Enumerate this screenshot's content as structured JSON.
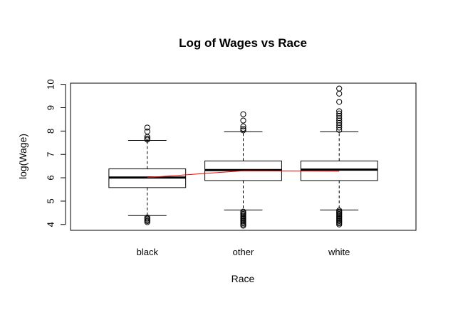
{
  "chart_data": {
    "type": "boxplot",
    "title": "Log of Wages vs Race",
    "xlabel": "Race",
    "ylabel": "log(Wage)",
    "ylim": [
      3.75,
      10.05
    ],
    "yticks": [
      4,
      5,
      6,
      7,
      8,
      9,
      10
    ],
    "categories": [
      "black",
      "other",
      "white"
    ],
    "boxes": [
      {
        "category": "black",
        "whisker_low": 4.38,
        "q1": 5.58,
        "median": 6.01,
        "q3": 6.38,
        "whisker_high": 7.6,
        "outliers": [
          4.1,
          4.15,
          4.2,
          4.25,
          4.3,
          7.63,
          7.68,
          7.75,
          7.98,
          8.15
        ]
      },
      {
        "category": "other",
        "whisker_low": 4.62,
        "q1": 5.88,
        "median": 6.33,
        "q3": 6.72,
        "whisker_high": 7.97,
        "outliers": [
          3.95,
          4.0,
          4.05,
          4.1,
          4.15,
          4.2,
          4.25,
          4.3,
          4.35,
          4.4,
          4.45,
          4.5,
          4.55,
          8.03,
          8.1,
          8.2,
          8.45,
          8.72
        ]
      },
      {
        "category": "white",
        "whisker_low": 4.62,
        "q1": 5.88,
        "median": 6.35,
        "q3": 6.72,
        "whisker_high": 7.97,
        "outliers": [
          4.0,
          4.05,
          4.1,
          4.15,
          4.2,
          4.25,
          4.3,
          4.35,
          4.4,
          4.45,
          4.5,
          4.55,
          4.6,
          8.05,
          8.15,
          8.25,
          8.35,
          8.45,
          8.55,
          8.65,
          8.75,
          8.85,
          9.25,
          9.6,
          9.82
        ]
      }
    ],
    "mean_line": {
      "color": "#ff0000",
      "points": [
        {
          "category": "black",
          "value": 6.01
        },
        {
          "category": "other",
          "value": 6.3
        },
        {
          "category": "white",
          "value": 6.28
        }
      ]
    },
    "grid": false,
    "legend": "none"
  }
}
